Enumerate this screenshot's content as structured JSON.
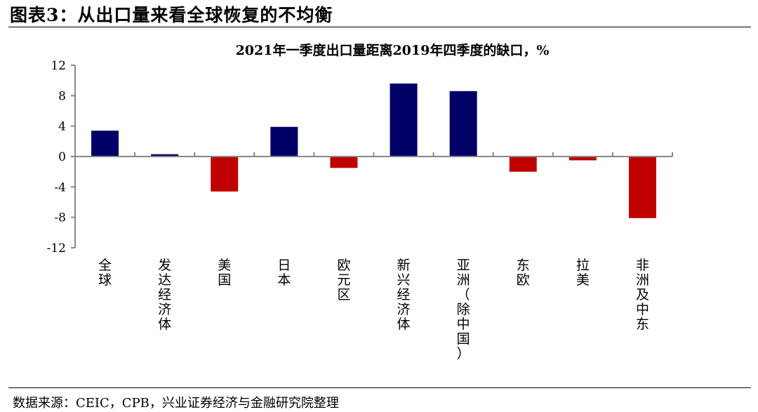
{
  "figure": {
    "title": "图表3：从出口量来看全球恢复的不均衡",
    "source": "数据来源：CEIC，CPB，兴业证券经济与金融研究院整理"
  },
  "chart_data": {
    "type": "bar",
    "title": "2021年一季度出口量距离2019年四季度的缺口，%",
    "xlabel": "",
    "ylabel": "",
    "ylim": [
      -12,
      12
    ],
    "yticks": [
      12,
      8,
      4,
      0,
      -4,
      -8,
      -12
    ],
    "ytick_labels": [
      "12",
      "8",
      "4",
      "0",
      "-4",
      "-8",
      "-12"
    ],
    "categories": [
      "全球",
      "发达经济体",
      "美国",
      "日本",
      "欧元区",
      "新兴经济体",
      "亚洲（除中国）",
      "东欧",
      "拉美",
      "非洲及中东"
    ],
    "category_lines": [
      [
        "全",
        "球"
      ],
      [
        "发",
        "达",
        "经",
        "济",
        "体"
      ],
      [
        "美",
        "国"
      ],
      [
        "日",
        "本"
      ],
      [
        "欧",
        "元",
        "区"
      ],
      [
        "新",
        "兴",
        "经",
        "济",
        "体"
      ],
      [
        "亚",
        "洲",
        "（",
        "除",
        "中",
        "国",
        "）"
      ],
      [
        "东",
        "欧"
      ],
      [
        "拉",
        "美"
      ],
      [
        "非",
        "洲",
        "及",
        "中",
        "东"
      ]
    ],
    "values": [
      3.4,
      0.3,
      -4.6,
      3.9,
      -1.5,
      9.6,
      8.6,
      -2.0,
      -0.5,
      -8.1
    ],
    "colors": {
      "positive": "#000066",
      "negative": "#c00000"
    },
    "grid": false,
    "legend": "none"
  }
}
